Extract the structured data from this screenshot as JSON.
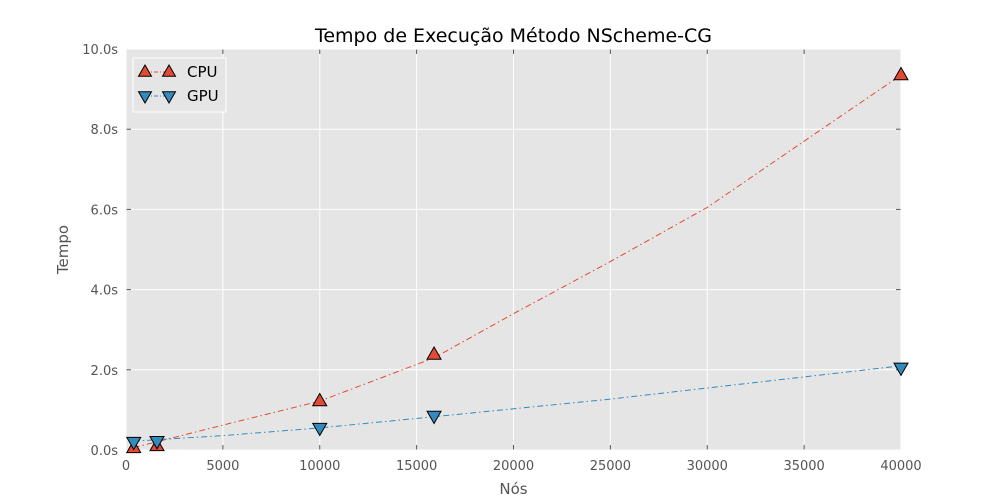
{
  "chart_data": {
    "type": "scatter",
    "title": "Tempo de Execução Método NScheme-CG",
    "xlabel": "Nós",
    "ylabel": "Tempo",
    "xlim": [
      0,
      40000
    ],
    "ylim": [
      0,
      10
    ],
    "xticks": [
      0,
      5000,
      10000,
      15000,
      20000,
      25000,
      30000,
      35000,
      40000
    ],
    "xtick_labels": [
      "0",
      "5000",
      "10000",
      "15000",
      "20000",
      "25000",
      "30000",
      "35000",
      "40000"
    ],
    "yticks": [
      0,
      2,
      4,
      6,
      8,
      10
    ],
    "ytick_labels": [
      "0.0s",
      "2.0s",
      "4.0s",
      "6.0s",
      "8.0s",
      "10.0s"
    ],
    "grid": true,
    "legend_position": "top-left",
    "series": [
      {
        "name": "CPU",
        "color": "#E24A33",
        "marker": "triangle-up",
        "line_style": "dash-dot",
        "x": [
          400,
          1600,
          10000,
          15900,
          40000
        ],
        "y": [
          0.05,
          0.1,
          1.22,
          2.38,
          9.35
        ],
        "fit": [
          [
            400,
            0.06
          ],
          [
            5000,
            0.62
          ],
          [
            10000,
            1.22
          ],
          [
            15900,
            2.3
          ],
          [
            20000,
            3.4
          ],
          [
            25000,
            4.7
          ],
          [
            30000,
            6.05
          ],
          [
            35000,
            7.7
          ],
          [
            40000,
            9.35
          ]
        ]
      },
      {
        "name": "GPU",
        "color": "#348ABD",
        "marker": "triangle-down",
        "line_style": "dash-dot",
        "x": [
          400,
          1600,
          10000,
          15900,
          40000
        ],
        "y": [
          0.2,
          0.22,
          0.55,
          0.85,
          2.05
        ],
        "fit": [
          [
            400,
            0.22
          ],
          [
            5000,
            0.36
          ],
          [
            10000,
            0.55
          ],
          [
            15900,
            0.83
          ],
          [
            25000,
            1.27
          ],
          [
            40000,
            2.1
          ]
        ]
      }
    ]
  }
}
